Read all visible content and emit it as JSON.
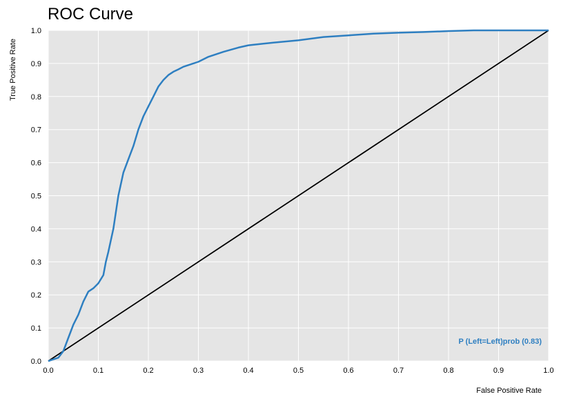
{
  "chart_data": {
    "type": "line",
    "title": "ROC Curve",
    "xlabel": "False Positive Rate",
    "ylabel": "True Positive Rate",
    "xlim": [
      0,
      1
    ],
    "ylim": [
      0,
      1
    ],
    "xticks": [
      "0.0",
      "0.1",
      "0.2",
      "0.3",
      "0.4",
      "0.5",
      "0.6",
      "0.7",
      "0.8",
      "0.9",
      "1.0"
    ],
    "yticks": [
      "0.0",
      "0.1",
      "0.2",
      "0.3",
      "0.4",
      "0.5",
      "0.6",
      "0.7",
      "0.8",
      "0.9",
      "1.0"
    ],
    "grid": true,
    "legend_position": "bottom-right",
    "colors": {
      "roc": "#2e7fc1",
      "diagonal": "#000000",
      "plot_bg": "#e5e5e5",
      "grid": "#ffffff"
    },
    "series": [
      {
        "name": "P (Left=Left)prob (0.83)",
        "x": [
          0.0,
          0.01,
          0.02,
          0.03,
          0.035,
          0.04,
          0.05,
          0.06,
          0.07,
          0.08,
          0.09,
          0.1,
          0.11,
          0.115,
          0.12,
          0.13,
          0.14,
          0.15,
          0.16,
          0.17,
          0.18,
          0.19,
          0.2,
          0.21,
          0.22,
          0.23,
          0.24,
          0.25,
          0.26,
          0.27,
          0.28,
          0.3,
          0.32,
          0.35,
          0.38,
          0.4,
          0.43,
          0.45,
          0.5,
          0.55,
          0.6,
          0.65,
          0.7,
          0.75,
          0.8,
          0.85,
          0.9,
          0.95,
          1.0
        ],
        "y": [
          0.0,
          0.005,
          0.01,
          0.03,
          0.05,
          0.07,
          0.11,
          0.14,
          0.18,
          0.21,
          0.22,
          0.235,
          0.26,
          0.3,
          0.33,
          0.4,
          0.5,
          0.57,
          0.61,
          0.65,
          0.7,
          0.74,
          0.77,
          0.8,
          0.83,
          0.85,
          0.865,
          0.875,
          0.882,
          0.89,
          0.895,
          0.905,
          0.92,
          0.935,
          0.948,
          0.955,
          0.96,
          0.963,
          0.97,
          0.98,
          0.985,
          0.99,
          0.993,
          0.995,
          0.998,
          1.0,
          1.0,
          1.0,
          1.0
        ]
      },
      {
        "name": "",
        "x": [
          0,
          1
        ],
        "y": [
          0,
          1
        ]
      }
    ]
  }
}
